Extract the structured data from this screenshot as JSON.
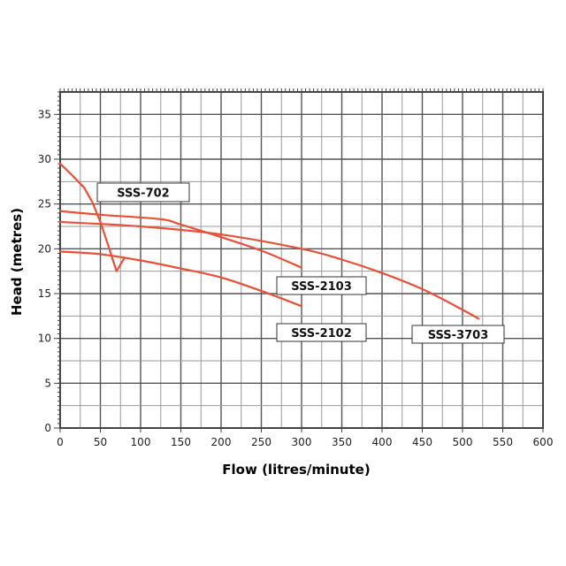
{
  "chart_data": {
    "type": "line",
    "title": "",
    "xlabel": "Flow (litres/minute)",
    "ylabel": "Head (metres)",
    "xlim": [
      0,
      600
    ],
    "ylim": [
      0,
      37.5
    ],
    "x_ticks": [
      0,
      50,
      100,
      150,
      200,
      250,
      300,
      350,
      400,
      450,
      500,
      550,
      600
    ],
    "y_ticks": [
      0,
      5,
      10,
      15,
      20,
      25,
      30,
      35
    ],
    "grid": true,
    "series_color": "#e8503a",
    "series": [
      {
        "name": "SSS-702",
        "x": [
          0,
          15,
          30,
          40,
          50,
          60,
          70,
          80
        ],
        "y": [
          29.5,
          28.2,
          26.8,
          25.2,
          23,
          20.3,
          17.5,
          19
        ]
      },
      {
        "name": "SSS-2103",
        "x": [
          0,
          50,
          125,
          150,
          200,
          250,
          300
        ],
        "y": [
          24.2,
          23.8,
          23.3,
          22.7,
          21.3,
          19.8,
          17.9
        ]
      },
      {
        "name": "SSS-2102",
        "x": [
          0,
          50,
          100,
          150,
          200,
          250,
          300
        ],
        "y": [
          19.7,
          19.4,
          18.7,
          17.8,
          16.8,
          15.3,
          13.6
        ]
      },
      {
        "name": "SSS-3703",
        "x": [
          0,
          100,
          200,
          300,
          350,
          400,
          450,
          500,
          520
        ],
        "y": [
          23.0,
          22.5,
          21.6,
          20.0,
          18.8,
          17.3,
          15.5,
          13.2,
          12.2
        ]
      }
    ]
  }
}
